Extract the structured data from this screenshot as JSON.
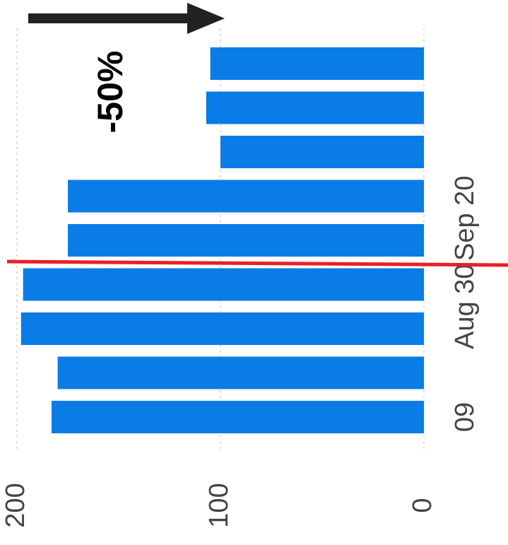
{
  "chart_data": {
    "type": "bar",
    "orientation": "vertical",
    "rotated_view": "90deg clockwise",
    "categories": [
      "",
      "",
      "",
      "",
      "",
      "",
      "",
      "",
      ""
    ],
    "values": [
      183,
      180,
      198,
      197,
      175,
      175,
      100,
      107,
      105
    ],
    "series": [
      {
        "values": [
          183,
          180,
          198,
          197,
          175,
          175,
          100,
          107,
          105
        ],
        "color": "#0a7ce6"
      }
    ],
    "title": "",
    "xlabel": "",
    "ylabel": "",
    "ylim": [
      0,
      210
    ],
    "y_ticks": [
      {
        "value": 0,
        "label": "0"
      },
      {
        "value": 100,
        "label": "100"
      },
      {
        "value": 200,
        "label": "200"
      }
    ],
    "x_tick_labels": [
      {
        "index": 0,
        "label": "09"
      },
      {
        "index": 2.5,
        "label": "Aug 30"
      },
      {
        "index": 4.5,
        "label": "Sep 20"
      }
    ],
    "grid": true,
    "legend": "none",
    "annotations": [
      {
        "type": "arrow",
        "color": "#222222",
        "direction": "toward later dates"
      },
      {
        "type": "text",
        "text": "-50%",
        "color": "#000000"
      },
      {
        "type": "vertical-line",
        "between_index": [
          3,
          4
        ],
        "color": "#e8202a"
      }
    ]
  }
}
